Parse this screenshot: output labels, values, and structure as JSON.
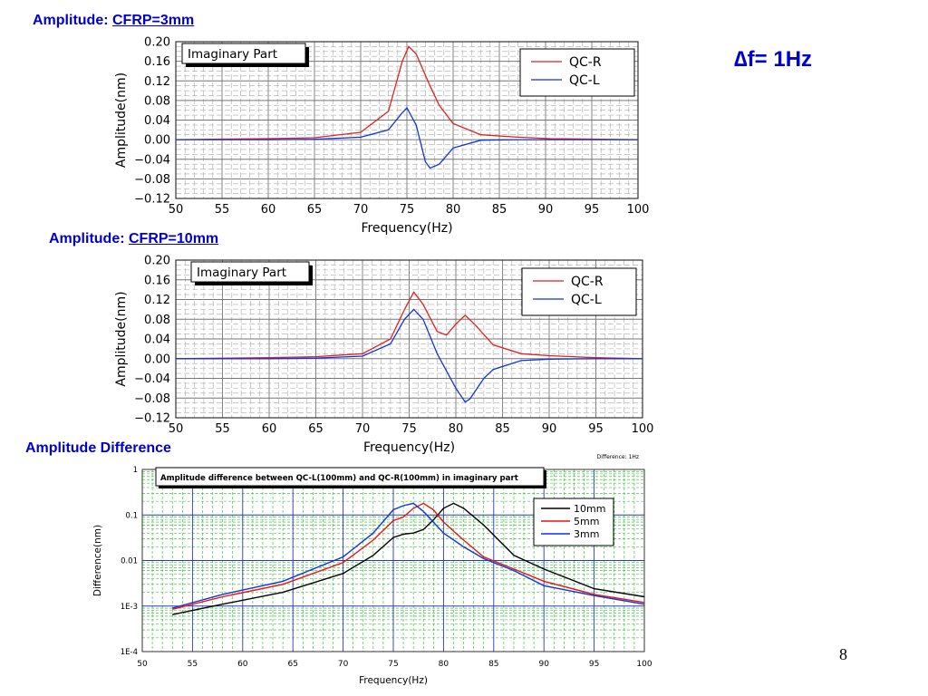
{
  "slide": {
    "section1": {
      "label": "Amplitude: ",
      "link": "CFRP=3mm"
    },
    "section2": {
      "label": "Amplitude: ",
      "link": "CFRP=10mm"
    },
    "section3": {
      "label": "Amplitude Difference"
    },
    "delta_f": "∆f= 1Hz",
    "page_number": "8"
  },
  "colors": {
    "title": "#0000cc",
    "qc_r": "#dd2222",
    "qc_l": "#1133dd",
    "s10": "#000000",
    "s5": "#ee1111",
    "s3": "#1133dd",
    "grid_major": "#2a3ab8",
    "grid_minor": "#22bb22",
    "plot_bg": "#ffffff"
  },
  "chart_data": [
    {
      "type": "line",
      "title": "Imaginary Part",
      "xlabel": "Frequency(Hz)",
      "ylabel": "Amplitude(nm)",
      "xlim": [
        50,
        100
      ],
      "ylim": [
        -0.12,
        0.2
      ],
      "xticks": [
        "50",
        "55",
        "60",
        "65",
        "70",
        "75",
        "80",
        "85",
        "90",
        "95",
        "100"
      ],
      "yticks": [
        "0.20",
        "0.16",
        "0.12",
        "0.08",
        "0.04",
        "0.00",
        "−0.04",
        "−0.08",
        "−0.12"
      ],
      "grid": true,
      "legend": "top-right",
      "series": [
        {
          "name": "QC-R",
          "x": [
            50,
            60,
            65,
            70,
            73,
            74.5,
            75.2,
            76,
            77.5,
            78.5,
            80,
            83,
            87,
            90.5,
            100
          ],
          "values": [
            0.0,
            0.002,
            0.004,
            0.015,
            0.058,
            0.16,
            0.19,
            0.175,
            0.11,
            0.07,
            0.033,
            0.01,
            0.005,
            0.002,
            0.0
          ]
        },
        {
          "name": "QC-L",
          "x": [
            50,
            60,
            65,
            70,
            73,
            74.5,
            75,
            76,
            77,
            77.5,
            78.5,
            80,
            83,
            87,
            90,
            100
          ],
          "values": [
            0.0,
            0.0,
            0.001,
            0.005,
            0.02,
            0.055,
            0.065,
            0.03,
            -0.045,
            -0.058,
            -0.05,
            -0.017,
            -0.001,
            0.0,
            0.0,
            0.0
          ]
        }
      ]
    },
    {
      "type": "line",
      "title": "Imaginary Part",
      "xlabel": "Frequency(Hz)",
      "ylabel": "Amplitude(nm)",
      "xlim": [
        50,
        100
      ],
      "ylim": [
        -0.12,
        0.2
      ],
      "xticks": [
        "50",
        "55",
        "60",
        "65",
        "70",
        "75",
        "80",
        "85",
        "90",
        "95",
        "100"
      ],
      "yticks": [
        "0.20",
        "0.16",
        "0.12",
        "0.08",
        "0.04",
        "0.00",
        "−0.04",
        "−0.08",
        "−0.12"
      ],
      "grid": true,
      "legend": "top-right",
      "series": [
        {
          "name": "QC-R",
          "x": [
            50,
            60,
            65,
            70,
            73,
            74.5,
            75.5,
            76.5,
            78,
            79,
            80,
            81,
            82,
            84,
            87,
            90,
            95,
            100
          ],
          "values": [
            0.0,
            0.002,
            0.004,
            0.01,
            0.04,
            0.1,
            0.135,
            0.11,
            0.055,
            0.048,
            0.07,
            0.088,
            0.07,
            0.028,
            0.01,
            0.006,
            0.002,
            0.0
          ]
        },
        {
          "name": "QC-L",
          "x": [
            50,
            60,
            65,
            70,
            73,
            74.5,
            75.5,
            76.5,
            78,
            80,
            81,
            81.5,
            83,
            84,
            87,
            90,
            95,
            100
          ],
          "values": [
            0.0,
            0.0,
            0.001,
            0.005,
            0.03,
            0.08,
            0.1,
            0.08,
            0.01,
            -0.06,
            -0.088,
            -0.082,
            -0.04,
            -0.022,
            -0.004,
            -0.001,
            0.0,
            0.0
          ]
        }
      ]
    },
    {
      "type": "line",
      "title": "Amplitude difference between QC-L(100mm) and QC-R(100mm) in imaginary part",
      "corner_note": "Difference: 1Hz",
      "xlabel": "Frequency(Hz)",
      "ylabel": "Difference(nm)",
      "yscale": "log",
      "xlim": [
        50,
        100
      ],
      "ylim": [
        0.0001,
        1
      ],
      "xticks": [
        "50",
        "55",
        "60",
        "65",
        "70",
        "75",
        "80",
        "85",
        "90",
        "95",
        "100"
      ],
      "yticks": [
        "1",
        "0.1",
        "0.01",
        "1E-3",
        "1E-4"
      ],
      "grid": true,
      "legend": "top-right",
      "series": [
        {
          "name": "10mm",
          "x": [
            53,
            58,
            64,
            70,
            73,
            75,
            76,
            77,
            78,
            79,
            80,
            81,
            82,
            84,
            87,
            90,
            95,
            100
          ],
          "values": [
            0.00065,
            0.0011,
            0.002,
            0.0052,
            0.013,
            0.032,
            0.038,
            0.04,
            0.048,
            0.078,
            0.14,
            0.18,
            0.14,
            0.06,
            0.013,
            0.0065,
            0.0024,
            0.0016
          ]
        },
        {
          "name": "5mm",
          "x": [
            53,
            58,
            64,
            70,
            73,
            75,
            76,
            77,
            78,
            79,
            80,
            82,
            84,
            87,
            90,
            95,
            100
          ],
          "values": [
            0.00085,
            0.0016,
            0.003,
            0.009,
            0.028,
            0.075,
            0.09,
            0.14,
            0.18,
            0.13,
            0.07,
            0.028,
            0.012,
            0.0065,
            0.0035,
            0.0018,
            0.0012
          ]
        },
        {
          "name": "3mm",
          "x": [
            53,
            58,
            64,
            70,
            73,
            75,
            76,
            77,
            78,
            80,
            82,
            84,
            87,
            90,
            95,
            100
          ],
          "values": [
            0.0009,
            0.0018,
            0.0035,
            0.012,
            0.04,
            0.13,
            0.16,
            0.18,
            0.12,
            0.04,
            0.02,
            0.011,
            0.006,
            0.0028,
            0.0017,
            0.0011
          ]
        }
      ]
    }
  ]
}
